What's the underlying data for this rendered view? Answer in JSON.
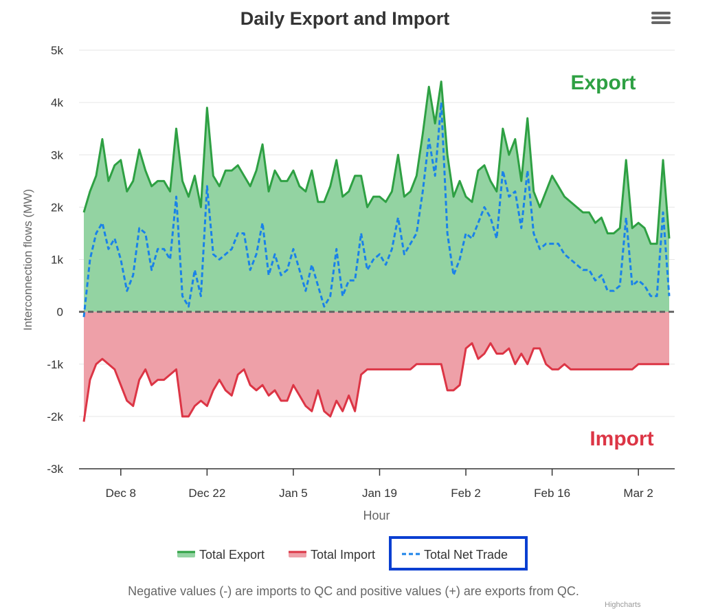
{
  "chart_data": {
    "type": "area",
    "title": "Daily Export and Import",
    "xlabel": "Hour",
    "ylabel": "Interconnection flows (MW)",
    "ylim": [
      -3000,
      5000
    ],
    "yticks": [
      -3000,
      -2000,
      -1000,
      0,
      1000,
      2000,
      3000,
      4000,
      5000
    ],
    "ytick_labels": [
      "-3k",
      "-2k",
      "-1k",
      "0",
      "1k",
      "2k",
      "3k",
      "4k",
      "5k"
    ],
    "x_start_day": 0,
    "x_end_day": 97,
    "xtick_days": [
      7,
      21,
      35,
      49,
      63,
      77,
      91
    ],
    "xtick_labels": [
      "Dec 8",
      "Dec 22",
      "Jan 5",
      "Jan 19",
      "Feb 2",
      "Feb 16",
      "Mar 2"
    ],
    "grid": true,
    "legend_position": "bottom-center",
    "annotations": [
      "Export",
      "Import"
    ],
    "series": [
      {
        "name": "Total Export",
        "color": "#2ea043",
        "fill": "#93d3a2",
        "x_day": [
          1,
          2,
          3,
          4,
          5,
          6,
          7,
          8,
          9,
          10,
          11,
          12,
          13,
          14,
          15,
          16,
          17,
          18,
          19,
          20,
          21,
          22,
          23,
          24,
          25,
          26,
          27,
          28,
          29,
          30,
          31,
          32,
          33,
          34,
          35,
          36,
          37,
          38,
          39,
          40,
          41,
          42,
          43,
          44,
          45,
          46,
          47,
          48,
          49,
          50,
          51,
          52,
          53,
          54,
          55,
          56,
          57,
          58,
          59,
          60,
          61,
          62,
          63,
          64,
          65,
          66,
          67,
          68,
          69,
          70,
          71,
          72,
          73,
          74,
          75,
          76,
          77,
          78,
          79,
          80,
          81,
          82,
          83,
          84,
          85,
          86,
          87,
          88,
          89,
          90,
          91,
          92,
          93,
          94,
          95,
          96
        ],
        "values": [
          1900,
          2300,
          2600,
          3300,
          2500,
          2800,
          2900,
          2300,
          2500,
          3100,
          2700,
          2400,
          2500,
          2500,
          2300,
          3500,
          2500,
          2200,
          2600,
          2000,
          3900,
          2600,
          2400,
          2700,
          2700,
          2800,
          2600,
          2400,
          2700,
          3200,
          2300,
          2700,
          2500,
          2500,
          2700,
          2400,
          2300,
          2700,
          2100,
          2100,
          2400,
          2900,
          2200,
          2300,
          2600,
          2600,
          2000,
          2200,
          2200,
          2100,
          2300,
          3000,
          2200,
          2300,
          2600,
          3400,
          4300,
          3600,
          4400,
          3000,
          2200,
          2500,
          2200,
          2100,
          2700,
          2800,
          2500,
          2300,
          3500,
          3000,
          3300,
          2500,
          3700,
          2300,
          2000,
          2300,
          2600,
          2400,
          2200,
          2100,
          2000,
          1900,
          1900,
          1700,
          1800,
          1500,
          1500,
          1600,
          2900,
          1600,
          1700,
          1600,
          1300,
          1300,
          2900,
          1400
        ],
        "extra_peaks": []
      },
      {
        "name": "Total Import",
        "color": "#dc3545",
        "fill": "#eea0a8",
        "x_day": [
          1,
          2,
          3,
          4,
          5,
          6,
          7,
          8,
          9,
          10,
          11,
          12,
          13,
          14,
          15,
          16,
          17,
          18,
          19,
          20,
          21,
          22,
          23,
          24,
          25,
          26,
          27,
          28,
          29,
          30,
          31,
          32,
          33,
          34,
          35,
          36,
          37,
          38,
          39,
          40,
          41,
          42,
          43,
          44,
          45,
          46,
          47,
          48,
          49,
          50,
          51,
          52,
          53,
          54,
          55,
          56,
          57,
          58,
          59,
          60,
          61,
          62,
          63,
          64,
          65,
          66,
          67,
          68,
          69,
          70,
          71,
          72,
          73,
          74,
          75,
          76,
          77,
          78,
          79,
          80,
          81,
          82,
          83,
          84,
          85,
          86,
          87,
          88,
          89,
          90,
          91,
          92,
          93,
          94,
          95,
          96
        ],
        "values": [
          -2100,
          -1300,
          -1000,
          -900,
          -1000,
          -1100,
          -1400,
          -1700,
          -1800,
          -1300,
          -1100,
          -1400,
          -1300,
          -1300,
          -1200,
          -1100,
          -2000,
          -2000,
          -1800,
          -1700,
          -1800,
          -1500,
          -1300,
          -1500,
          -1600,
          -1200,
          -1100,
          -1400,
          -1500,
          -1400,
          -1600,
          -1500,
          -1700,
          -1700,
          -1400,
          -1600,
          -1800,
          -1900,
          -1500,
          -1900,
          -2000,
          -1700,
          -1900,
          -1600,
          -1900,
          -1200,
          -1100,
          -1100,
          -1100,
          -1100,
          -1100,
          -1100,
          -1100,
          -1100,
          -1000,
          -1000,
          -1000,
          -1000,
          -1000,
          -1500,
          -1500,
          -1400,
          -700,
          -600,
          -900,
          -800,
          -600,
          -800,
          -800,
          -700,
          -1000,
          -800,
          -1000,
          -700,
          -700,
          -1000,
          -1100,
          -1100,
          -1000,
          -1100,
          -1100,
          -1100,
          -1100,
          -1100,
          -1100,
          -1100,
          -1100,
          -1100,
          -1100,
          -1100,
          -1000,
          -1000,
          -1000,
          -1000,
          -1000,
          -1000
        ],
        "extra_peaks": []
      },
      {
        "name": "Total Net Trade",
        "color": "#1a82e8",
        "dash": true,
        "x_day": [
          1,
          2,
          3,
          4,
          5,
          6,
          7,
          8,
          9,
          10,
          11,
          12,
          13,
          14,
          15,
          16,
          17,
          18,
          19,
          20,
          21,
          22,
          23,
          24,
          25,
          26,
          27,
          28,
          29,
          30,
          31,
          32,
          33,
          34,
          35,
          36,
          37,
          38,
          39,
          40,
          41,
          42,
          43,
          44,
          45,
          46,
          47,
          48,
          49,
          50,
          51,
          52,
          53,
          54,
          55,
          56,
          57,
          58,
          59,
          60,
          61,
          62,
          63,
          64,
          65,
          66,
          67,
          68,
          69,
          70,
          71,
          72,
          73,
          74,
          75,
          76,
          77,
          78,
          79,
          80,
          81,
          82,
          83,
          84,
          85,
          86,
          87,
          88,
          89,
          90,
          91,
          92,
          93,
          94,
          95,
          96
        ],
        "values": [
          -100,
          1000,
          1500,
          1700,
          1200,
          1400,
          1000,
          400,
          700,
          1600,
          1500,
          800,
          1200,
          1200,
          1000,
          2200,
          300,
          100,
          800,
          300,
          2400,
          1100,
          1000,
          1100,
          1200,
          1500,
          1500,
          800,
          1100,
          1700,
          700,
          1100,
          700,
          800,
          1200,
          800,
          400,
          900,
          500,
          100,
          300,
          1200,
          300,
          600,
          600,
          1500,
          800,
          1000,
          1100,
          900,
          1200,
          1800,
          1100,
          1300,
          1500,
          2300,
          3300,
          2600,
          4000,
          1500,
          700,
          1000,
          1500,
          1400,
          1700,
          2000,
          1800,
          1400,
          2700,
          2200,
          2300,
          1600,
          2700,
          1500,
          1200,
          1300,
          1300,
          1300,
          1100,
          1000,
          900,
          800,
          800,
          600,
          700,
          400,
          400,
          500,
          1800,
          500,
          600,
          500,
          300,
          300,
          1900,
          300
        ],
        "extra_peaks": []
      }
    ],
    "legend": [
      "Total Export",
      "Total Import",
      "Total Net Trade"
    ]
  },
  "footnote": "Negative values (-) are imports to QC and positive values (+) are exports from QC.",
  "credits": "Highcharts",
  "colors": {
    "export_label": "#2ea043",
    "import_label": "#dc3545",
    "highlight_box": "#0a3fd1",
    "axis_text": "#333333",
    "grid": "#e6e6e6"
  },
  "icons": {
    "menu": "hamburger-menu-icon"
  }
}
